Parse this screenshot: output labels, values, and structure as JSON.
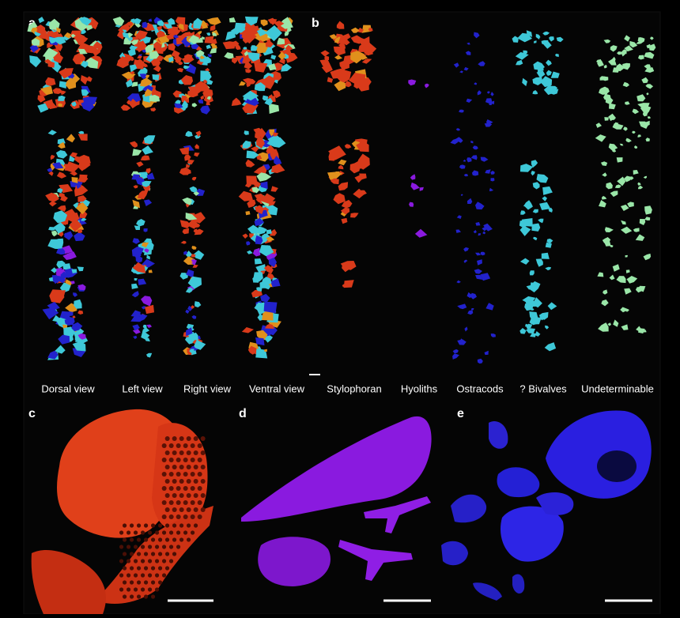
{
  "panels": [
    "a",
    "b",
    "c",
    "d",
    "e"
  ],
  "view_labels": [
    "Dorsal view",
    "Left view",
    "Right view",
    "Ventral view"
  ],
  "group_labels": [
    "Stylophoran",
    "Hyoliths",
    "Ostracods",
    "? Bivalves",
    "Undeterminable"
  ]
}
